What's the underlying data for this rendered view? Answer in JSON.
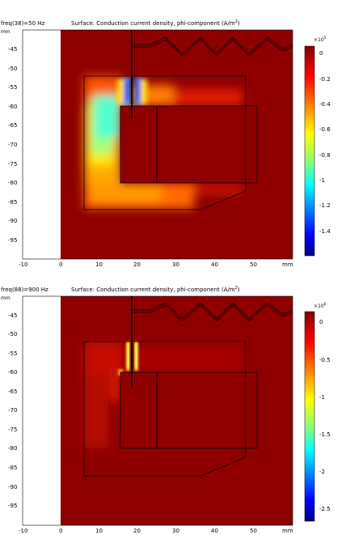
{
  "panels": [
    {
      "id": "top",
      "param_label": "freq(38)=50 Hz",
      "title": "Surface: Conduction current density, phi-component (A/m",
      "title_sup": "2",
      "title_close": ")",
      "axis_unit": "mm",
      "x_ticks": [
        "-10",
        "0",
        "10",
        "20",
        "30",
        "40",
        "50",
        "mm"
      ],
      "y_ticks": [
        "-45",
        "-50",
        "-55",
        "-60",
        "-65",
        "-70",
        "-75",
        "-80",
        "-85",
        "-90",
        "-95"
      ],
      "colorbar": {
        "multiplier_base": "×10",
        "multiplier_exp": "5",
        "ticks": [
          "0",
          "-0.2",
          "-0.4",
          "-0.6",
          "-0.8",
          "-1",
          "-1.2",
          "-1.4"
        ],
        "max": 0,
        "min": -1.58
      }
    },
    {
      "id": "bottom",
      "param_label": "freq(88)=900 Hz",
      "title": "Surface: Conduction current density, phi-component (A/m",
      "title_sup": "2",
      "title_close": ")",
      "axis_unit": "mm",
      "x_ticks": [
        "-10",
        "0",
        "10",
        "20",
        "30",
        "40",
        "50",
        "mm"
      ],
      "y_ticks": [
        "-45",
        "-50",
        "-55",
        "-60",
        "-65",
        "-70",
        "-75",
        "-80",
        "-85",
        "-90",
        "-95"
      ],
      "colorbar": {
        "multiplier_base": "×10",
        "multiplier_exp": "6",
        "ticks": [
          "0",
          "-0.5",
          "-1",
          "-1.5",
          "-2",
          "-2.5"
        ],
        "max": 0,
        "min": -2.75
      }
    }
  ],
  "colormap": [
    "#7f0000",
    "#ff0000",
    "#ff7f00",
    "#ffff00",
    "#7fff7f",
    "#00ffff",
    "#007fff",
    "#0000ff",
    "#00007f"
  ],
  "chart_data": [
    {
      "type": "heatmap",
      "title": "Surface: Conduction current density, phi-component (A/m²)",
      "parameter": "freq(38)=50 Hz",
      "x_range_mm": [
        -10,
        61
      ],
      "y_range_mm": [
        -101,
        -40
      ],
      "value_range": [
        -158000,
        0
      ],
      "colorbar_scale": "×10^5"
    },
    {
      "type": "heatmap",
      "title": "Surface: Conduction current density, phi-component (A/m²)",
      "parameter": "freq(88)=900 Hz",
      "x_range_mm": [
        -10,
        61
      ],
      "y_range_mm": [
        -101,
        -40
      ],
      "value_range": [
        -2750000,
        0
      ],
      "colorbar_scale": "×10^6"
    }
  ]
}
